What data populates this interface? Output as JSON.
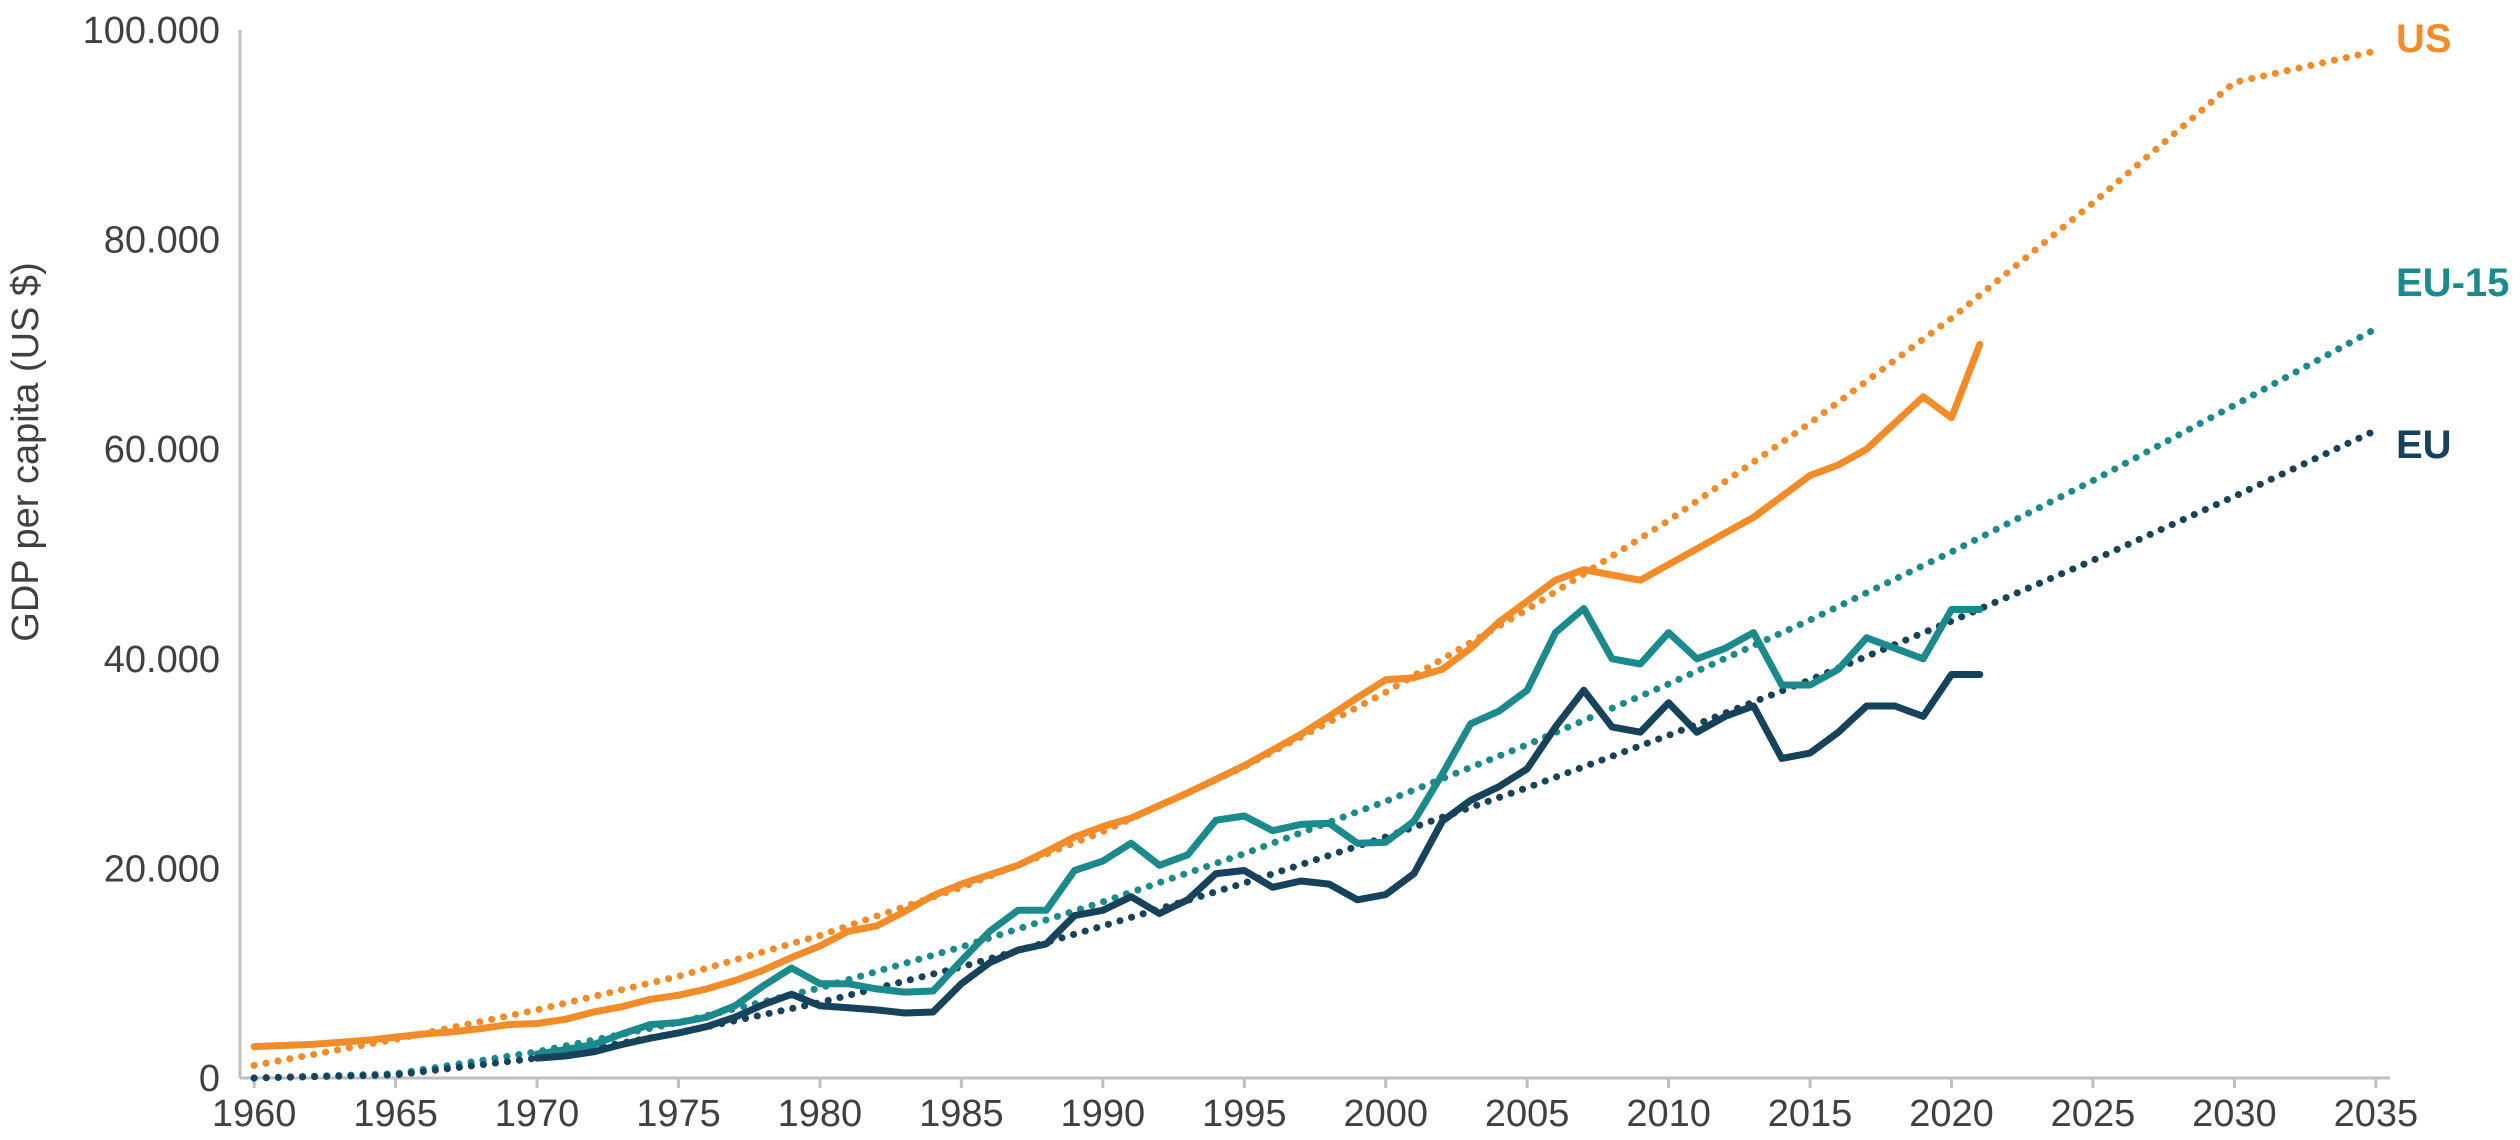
{
  "chart_data": {
    "type": "line",
    "ylabel": "GDP per capita (US $)",
    "xlabel": "",
    "xlim": [
      1959.5,
      2035.5
    ],
    "ylim": [
      0,
      100000
    ],
    "x_ticks": [
      "1960",
      "1965",
      "1970",
      "1975",
      "1980",
      "1985",
      "1990",
      "1995",
      "2000",
      "2005",
      "2010",
      "2015",
      "2020",
      "2025",
      "2030",
      "2035"
    ],
    "y_ticks": [
      "0",
      "20.000",
      "40.000",
      "60.000",
      "80.000",
      "100.000"
    ],
    "grid": false,
    "legend": "direct labels at right end of trend lines",
    "colors": {
      "US": "#f28c28",
      "EU-15": "#1a8a8c",
      "EU": "#16425b"
    },
    "series": [
      {
        "name": "US",
        "style": "solid",
        "x": [
          1960,
          1961,
          1962,
          1963,
          1964,
          1965,
          1966,
          1967,
          1968,
          1969,
          1970,
          1971,
          1972,
          1973,
          1974,
          1975,
          1976,
          1977,
          1978,
          1979,
          1980,
          1981,
          1982,
          1983,
          1984,
          1985,
          1986,
          1987,
          1988,
          1989,
          1990,
          1991,
          1992,
          1993,
          1994,
          1995,
          1996,
          1997,
          1998,
          1999,
          2000,
          2001,
          2002,
          2003,
          2004,
          2005,
          2006,
          2007,
          2008,
          2009,
          2010,
          2011,
          2012,
          2013,
          2014,
          2015,
          2016,
          2017,
          2018,
          2019,
          2020,
          2021
        ],
        "values": [
          3000,
          3100,
          3200,
          3400,
          3600,
          3900,
          4200,
          4400,
          4700,
          5100,
          5200,
          5600,
          6300,
          6800,
          7500,
          7900,
          8500,
          9300,
          10300,
          11500,
          12600,
          14000,
          14500,
          15900,
          17400,
          18500,
          19400,
          20300,
          21600,
          23000,
          24000,
          24800,
          26000,
          27200,
          28500,
          29800,
          31300,
          32800,
          34500,
          36300,
          38000,
          38200,
          39000,
          41000,
          43500,
          45500,
          47500,
          48500,
          48000,
          47500,
          49000,
          50500,
          52000,
          53500,
          55500,
          57500,
          58500,
          60000,
          62500,
          65000,
          63000,
          70000
        ]
      },
      {
        "name": "EU-15",
        "style": "solid",
        "x": [
          1970,
          1971,
          1972,
          1973,
          1974,
          1975,
          1976,
          1977,
          1978,
          1979,
          1980,
          1981,
          1982,
          1983,
          1984,
          1985,
          1986,
          1987,
          1988,
          1989,
          1990,
          1991,
          1992,
          1993,
          1994,
          1995,
          1996,
          1997,
          1998,
          1999,
          2000,
          2001,
          2002,
          2003,
          2004,
          2005,
          2006,
          2007,
          2008,
          2009,
          2010,
          2011,
          2012,
          2013,
          2014,
          2015,
          2016,
          2017,
          2018,
          2019,
          2020,
          2021
        ],
        "values": [
          2300,
          2700,
          3200,
          4200,
          5100,
          5300,
          5800,
          6900,
          8800,
          10500,
          9000,
          9000,
          8500,
          8200,
          8300,
          11200,
          14000,
          16000,
          16000,
          19800,
          20700,
          22400,
          20300,
          21300,
          24600,
          25000,
          23600,
          24200,
          24300,
          22400,
          22500,
          24500,
          29000,
          33800,
          35000,
          37000,
          42500,
          44800,
          40000,
          39500,
          42500,
          40000,
          41000,
          42500,
          37500,
          37500,
          39000,
          42000,
          41000,
          40000,
          44700,
          44700
        ]
      },
      {
        "name": "EU",
        "style": "solid",
        "x": [
          1970,
          1971,
          1972,
          1973,
          1974,
          1975,
          1976,
          1977,
          1978,
          1979,
          1980,
          1981,
          1982,
          1983,
          1984,
          1985,
          1986,
          1987,
          1988,
          1989,
          1990,
          1991,
          1992,
          1993,
          1994,
          1995,
          1996,
          1997,
          1998,
          1999,
          2000,
          2001,
          2002,
          2003,
          2004,
          2005,
          2006,
          2007,
          2008,
          2009,
          2010,
          2011,
          2012,
          2013,
          2014,
          2015,
          2016,
          2017,
          2018,
          2019,
          2020,
          2021
        ],
        "values": [
          1900,
          2100,
          2500,
          3200,
          3800,
          4300,
          4900,
          5800,
          7000,
          8000,
          6900,
          6700,
          6500,
          6200,
          6300,
          9000,
          11000,
          12200,
          12800,
          15500,
          16000,
          17300,
          15700,
          17000,
          19500,
          19800,
          18200,
          18800,
          18500,
          17000,
          17500,
          19500,
          24500,
          26500,
          27800,
          29500,
          33500,
          37000,
          33500,
          33000,
          35800,
          33000,
          34500,
          35500,
          30500,
          31000,
          33000,
          35500,
          35500,
          34500,
          38500,
          38500
        ]
      },
      {
        "name": "US",
        "style": "dotted",
        "x": [
          1960,
          1965,
          1970,
          1975,
          1980,
          1985,
          1990,
          1995,
          2000,
          2005,
          2010,
          2015,
          2020,
          2025,
          2030,
          2035
        ],
        "values": [
          1200,
          3700,
          6500,
          9700,
          13600,
          18200,
          23500,
          29700,
          36800,
          44700,
          53200,
          62500,
          72500,
          83500,
          95000,
          98000
        ]
      },
      {
        "name": "EU-15",
        "style": "dotted",
        "x": [
          1960,
          1965,
          1970,
          1975,
          1980,
          1985,
          1990,
          1995,
          2000,
          2005,
          2010,
          2015,
          2020,
          2025,
          2030,
          2035
        ],
        "values": [
          0,
          400,
          2500,
          5300,
          8600,
          12500,
          16800,
          21400,
          26400,
          31800,
          37600,
          43700,
          50200,
          57000,
          64200,
          71500
        ]
      },
      {
        "name": "EU",
        "style": "dotted",
        "x": [
          1960,
          1965,
          1970,
          1975,
          1980,
          1985,
          1990,
          1995,
          2000,
          2005,
          2010,
          2015,
          2020,
          2025,
          2030,
          2035
        ],
        "values": [
          0,
          300,
          1900,
          4300,
          7200,
          10600,
          14500,
          18600,
          23000,
          27700,
          32700,
          38000,
          43600,
          49400,
          55500,
          61800
        ]
      }
    ],
    "series_labels": [
      "US",
      "EU-15",
      "EU"
    ]
  }
}
